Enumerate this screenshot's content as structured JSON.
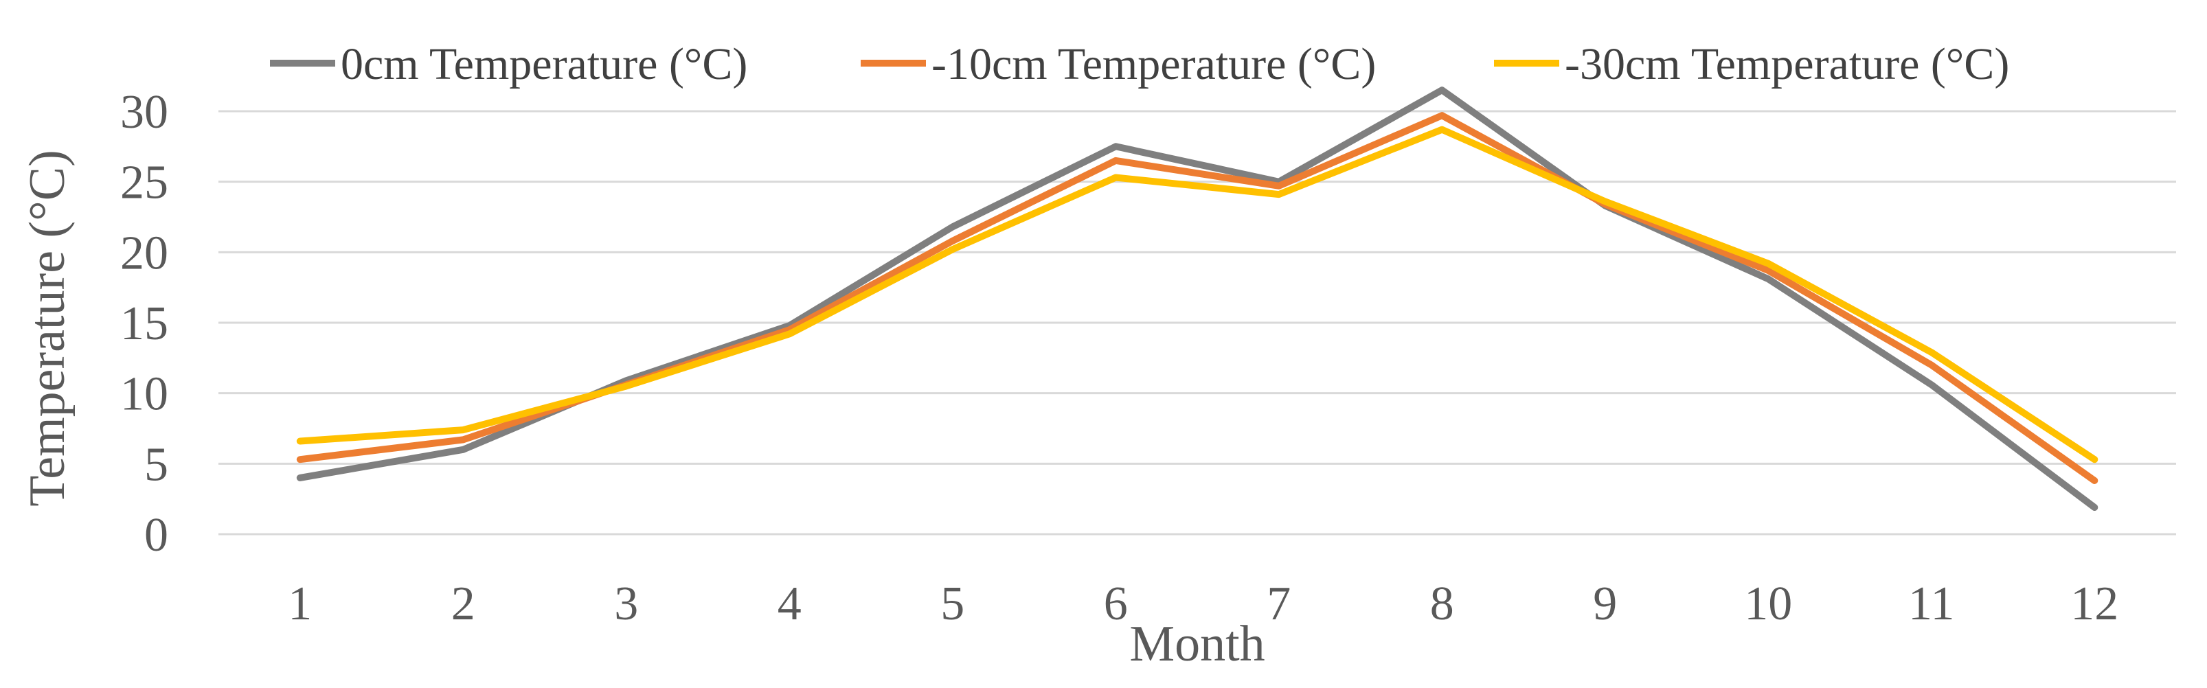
{
  "chart_data": {
    "type": "line",
    "xlabel": "Month",
    "ylabel": "Temperature (°C)",
    "ylim": [
      0,
      30
    ],
    "yticks": [
      0,
      5,
      10,
      15,
      20,
      25,
      30
    ],
    "categories": [
      "1",
      "2",
      "3",
      "4",
      "5",
      "6",
      "7",
      "8",
      "9",
      "10",
      "11",
      "12"
    ],
    "grid": "horizontal",
    "legend_position": "top",
    "series": [
      {
        "name": "0cm Temperature (°C)",
        "color": "#7f7f7f",
        "values": [
          4.0,
          6.0,
          10.9,
          14.8,
          21.8,
          27.5,
          25.0,
          31.5,
          23.3,
          18.1,
          10.6,
          1.9
        ]
      },
      {
        "name": "-10cm Temperature (°C)",
        "color": "#ed7d31",
        "values": [
          5.3,
          6.7,
          10.6,
          14.5,
          20.8,
          26.5,
          24.7,
          29.7,
          23.4,
          18.7,
          12.0,
          3.8
        ]
      },
      {
        "name": "-30cm Temperature (°C)",
        "color": "#ffc000",
        "values": [
          6.6,
          7.4,
          10.5,
          14.2,
          20.2,
          25.3,
          24.1,
          28.7,
          23.6,
          19.2,
          12.9,
          5.3
        ]
      }
    ]
  }
}
